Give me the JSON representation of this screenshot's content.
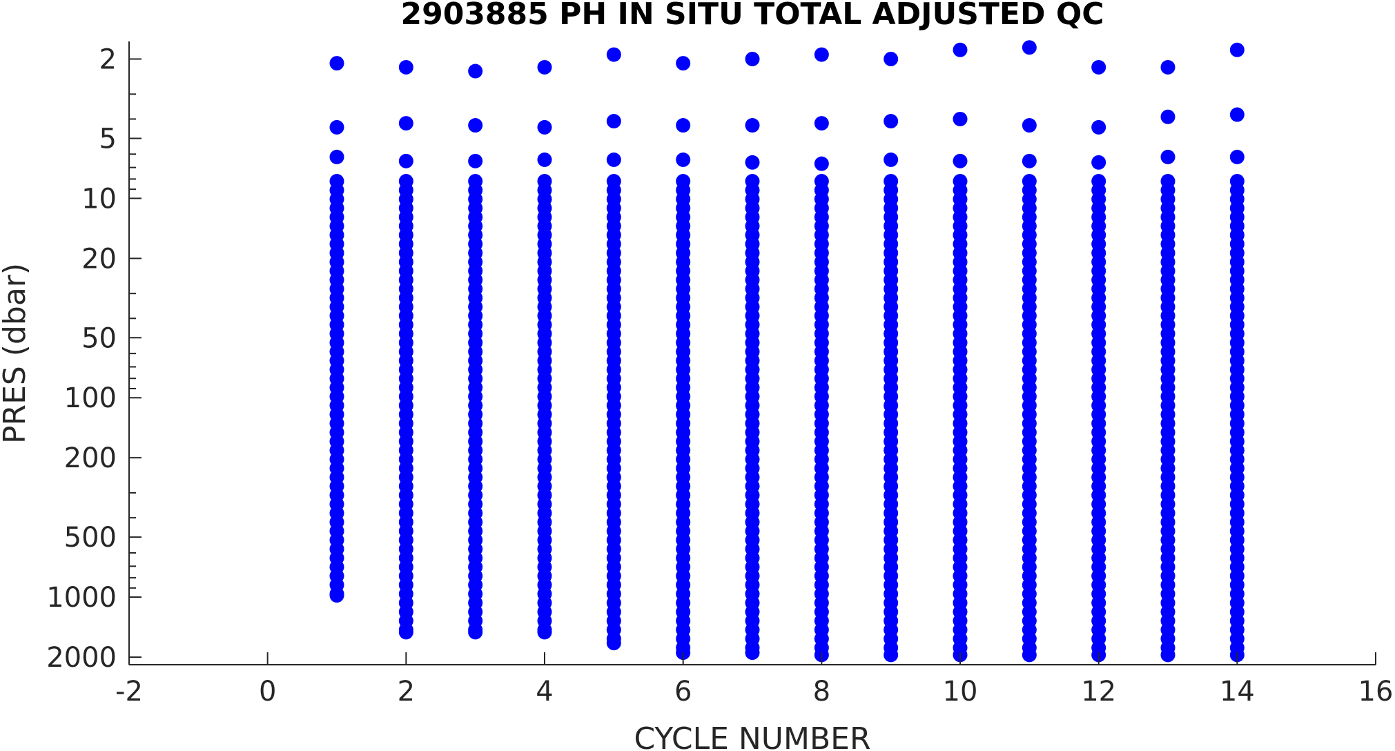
{
  "chart_data": {
    "type": "scatter",
    "title": "2903885  PH IN SITU TOTAL ADJUSTED QC",
    "xlabel": "CYCLE NUMBER",
    "ylabel": "PRES (dbar)",
    "xlim": [
      -2,
      16
    ],
    "ylim": [
      1.7,
      2150
    ],
    "y_scale": "log",
    "y_direction": "reversed",
    "grid": false,
    "legend": "none",
    "marker_color": "#0000ff",
    "x_ticks": [
      -2,
      0,
      2,
      4,
      6,
      8,
      10,
      12,
      14,
      16
    ],
    "x_tick_labels": [
      "-2",
      "0",
      "2",
      "4",
      "6",
      "8",
      "10",
      "12",
      "14",
      "16"
    ],
    "y_ticks": [
      2,
      5,
      10,
      20,
      50,
      100,
      200,
      500,
      1000,
      2000
    ],
    "y_tick_labels": [
      "2",
      "5",
      "10",
      "20",
      "50",
      "100",
      "200",
      "500",
      "1000",
      "2000"
    ],
    "series": [
      {
        "x": [
          1,
          2,
          3,
          4,
          5,
          6,
          7,
          8,
          9,
          10,
          11,
          12,
          13,
          14
        ],
        "surface_pres": [
          2.1,
          2.2,
          2.3,
          2.2,
          1.9,
          2.1,
          2.0,
          1.9,
          2.0,
          1.8,
          1.75,
          2.2,
          2.2,
          1.8
        ],
        "second_pres": [
          4.4,
          4.2,
          4.3,
          4.4,
          4.1,
          4.3,
          4.3,
          4.2,
          4.1,
          4.0,
          4.3,
          4.4,
          3.9,
          3.8
        ],
        "third_pres": [
          6.2,
          6.5,
          6.5,
          6.4,
          6.4,
          6.4,
          6.6,
          6.7,
          6.4,
          6.5,
          6.5,
          6.6,
          6.2,
          6.2
        ],
        "max_pres": [
          980,
          1500,
          1500,
          1500,
          1700,
          1900,
          1900,
          1950,
          1950,
          1950,
          1950,
          1950,
          1950,
          1950
        ]
      }
    ]
  }
}
